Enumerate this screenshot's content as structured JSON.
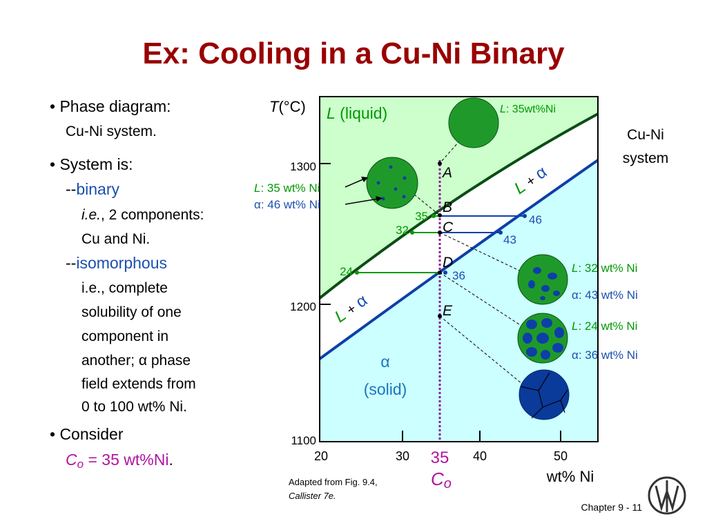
{
  "title": "Ex:  Cooling in a Cu-Ni Binary",
  "notes": {
    "phase_diagram": "• Phase diagram:",
    "cu_ni_system": "Cu-Ni system.",
    "system_is": "• System is:",
    "dash_binary": "--",
    "binary": "binary",
    "ie": "i.e.",
    "components": ", 2 components:",
    "cu_and_ni": "Cu and Ni.",
    "dash_isomorphous": "--",
    "isomorphous": "isomorphous",
    "lines": [
      "i.e., complete",
      "solubility of one",
      "component in"
    ],
    "another": "another; ",
    "alpha": "α",
    "phase": " phase",
    "lines_end": [
      "field extends from",
      "0 to 100 wt% Ni."
    ],
    "consider": "• Consider",
    "c": "C",
    "o": "o",
    "composition": " = 35 wt%Ni",
    "period": "."
  },
  "diagram": {
    "y_label_t": "T",
    "y_label_unit": "(°C)",
    "yticks": [
      "1300",
      "1200",
      "1100"
    ],
    "xticks": [
      "20",
      "30",
      "40",
      "50"
    ],
    "x_label": "wt% Ni",
    "co_value": "35",
    "co_c": "C",
    "co_o": "o",
    "liquid": {
      "l": "L",
      "text": " (liquid)"
    },
    "solid": {
      "alpha": "α",
      "text": "(solid)"
    },
    "two_phase_top": {
      "l": "L",
      "plus": "+",
      "alpha": "α"
    },
    "two_phase_bottom": {
      "l": "L",
      "plus": "+",
      "alpha": "α"
    },
    "points": [
      "A",
      "B",
      "C",
      "D",
      "E"
    ],
    "tie_values": [
      "35",
      "46",
      "32",
      "43",
      "24",
      "36"
    ],
    "system_label": [
      "Cu-Ni",
      "system"
    ],
    "compositions": [
      {
        "phase": "L",
        "text": ": 35wt%Ni"
      },
      {
        "phase": "L",
        "text": ": 35 wt% Ni"
      },
      {
        "phase": "α",
        "text": ": 46 wt% Ni"
      },
      {
        "phase": "L",
        "text": ": 32 wt% Ni"
      },
      {
        "phase": "α",
        "text": ": 43 wt% Ni"
      },
      {
        "phase": "L",
        "text": ": 24 wt% Ni"
      },
      {
        "phase": "α",
        "text": ": 36 wt% Ni"
      }
    ]
  },
  "footer": {
    "adapted": "Adapted from Fig. 9.4,",
    "callister": "Callister 7e.",
    "chapter": "Chapter 9 -  11"
  }
}
